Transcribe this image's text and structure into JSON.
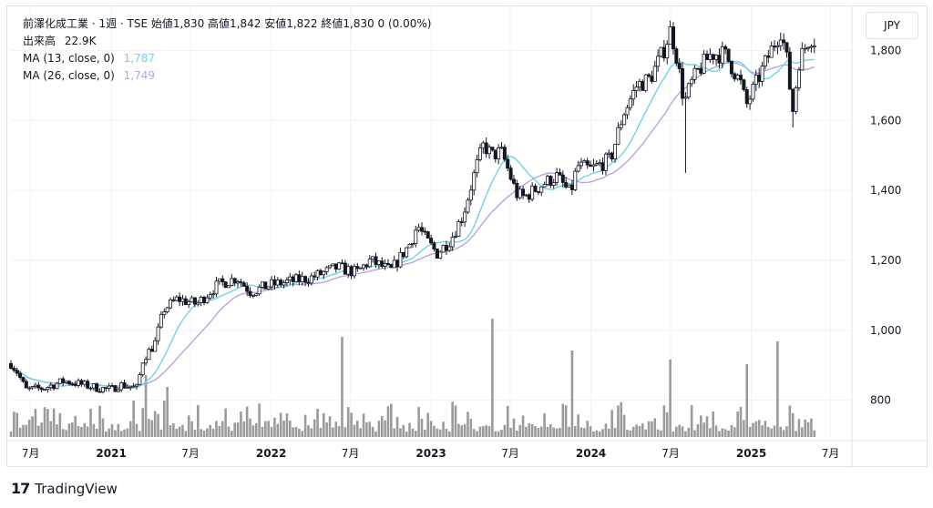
{
  "legend": {
    "main": "前澤化成工業 · 1週 · TSE  始値1,830  高値1,842  安値1,822  終値1,830  0 (0.00%)",
    "volume_label": "出来高",
    "volume_value": "22.9K",
    "ma13_label": "MA (13, close, 0)",
    "ma13_value": "1,787",
    "ma26_label": "MA (26, close, 0)",
    "ma26_value": "1,749"
  },
  "currency_button": "JPY",
  "brand": {
    "logo": "17",
    "name": "TradingView"
  },
  "colors": {
    "ma13": "#6fd4e4",
    "ma26": "#b9a4de",
    "candle": "#131722",
    "volume": "#8a8a8a",
    "grid": "#f0f3fa"
  },
  "chart_data": {
    "type": "candlestick",
    "timeframe": "1週",
    "y_ticks": [
      "1,800",
      "1,600",
      "1,400",
      "1,200",
      "1,000",
      "800"
    ],
    "y_tick_values": [
      1800,
      1600,
      1400,
      1200,
      1000,
      800
    ],
    "ylim": [
      695,
      1895
    ],
    "x_labels": [
      {
        "text": "7月",
        "date": "2020-07-01",
        "bold": false
      },
      {
        "text": "2021",
        "date": "2021-01-01",
        "bold": true
      },
      {
        "text": "7月",
        "date": "2021-07-01",
        "bold": false
      },
      {
        "text": "2022",
        "date": "2022-01-01",
        "bold": true
      },
      {
        "text": "7月",
        "date": "2022-07-01",
        "bold": false
      },
      {
        "text": "2023",
        "date": "2023-01-01",
        "bold": true
      },
      {
        "text": "7月",
        "date": "2023-07-01",
        "bold": false
      },
      {
        "text": "2024",
        "date": "2024-01-01",
        "bold": true
      },
      {
        "text": "7月",
        "date": "2024-07-01",
        "bold": false
      },
      {
        "text": "2025",
        "date": "2025-01-01",
        "bold": true
      },
      {
        "text": "7月",
        "date": "2025-07-01",
        "bold": false
      }
    ],
    "x_range": [
      "2020-05-17",
      "2025-07-31"
    ],
    "price_keypoints": [
      [
        "2020-05-17",
        905
      ],
      [
        "2020-06-01",
        880
      ],
      [
        "2020-06-20",
        830
      ],
      [
        "2020-08-01",
        835
      ],
      [
        "2020-09-15",
        855
      ],
      [
        "2020-10-15",
        848
      ],
      [
        "2020-12-01",
        835
      ],
      [
        "2021-01-01",
        830
      ],
      [
        "2021-01-20",
        845
      ],
      [
        "2021-03-01",
        835
      ],
      [
        "2021-03-15",
        920
      ],
      [
        "2021-04-10",
        960
      ],
      [
        "2021-05-01",
        1060
      ],
      [
        "2021-06-01",
        1090
      ],
      [
        "2021-07-15",
        1075
      ],
      [
        "2021-09-01",
        1130
      ],
      [
        "2021-10-15",
        1150
      ],
      [
        "2021-11-15",
        1110
      ],
      [
        "2022-01-01",
        1130
      ],
      [
        "2022-02-15",
        1140
      ],
      [
        "2022-04-01",
        1150
      ],
      [
        "2022-06-01",
        1180
      ],
      [
        "2022-07-15",
        1165
      ],
      [
        "2022-08-15",
        1200
      ],
      [
        "2022-10-01",
        1170
      ],
      [
        "2022-11-15",
        1250
      ],
      [
        "2022-12-01",
        1300
      ],
      [
        "2022-12-20",
        1260
      ],
      [
        "2023-01-15",
        1220
      ],
      [
        "2023-02-15",
        1260
      ],
      [
        "2023-03-15",
        1330
      ],
      [
        "2023-04-15",
        1470
      ],
      [
        "2023-05-01",
        1530
      ],
      [
        "2023-05-20",
        1500
      ],
      [
        "2023-06-10",
        1510
      ],
      [
        "2023-06-20",
        1480
      ],
      [
        "2023-07-15",
        1390
      ],
      [
        "2023-08-01",
        1380
      ],
      [
        "2023-09-15",
        1420
      ],
      [
        "2023-10-15",
        1440
      ],
      [
        "2023-11-15",
        1390
      ],
      [
        "2023-12-01",
        1470
      ],
      [
        "2024-01-01",
        1460
      ],
      [
        "2024-02-15",
        1490
      ],
      [
        "2024-03-15",
        1620
      ],
      [
        "2024-04-15",
        1700
      ],
      [
        "2024-05-15",
        1720
      ],
      [
        "2024-06-15",
        1800
      ],
      [
        "2024-07-01",
        1860
      ],
      [
        "2024-07-15",
        1780
      ],
      [
        "2024-08-01",
        1650
      ],
      [
        "2024-08-15",
        1700
      ],
      [
        "2024-09-01",
        1740
      ],
      [
        "2024-10-01",
        1790
      ],
      [
        "2024-11-01",
        1790
      ],
      [
        "2024-11-15",
        1760
      ],
      [
        "2024-12-10",
        1700
      ],
      [
        "2024-12-20",
        1640
      ],
      [
        "2025-01-10",
        1700
      ],
      [
        "2025-02-15",
        1800
      ],
      [
        "2025-03-10",
        1860
      ],
      [
        "2025-03-25",
        1760
      ],
      [
        "2025-04-05",
        1620
      ],
      [
        "2025-04-20",
        1770
      ],
      [
        "2025-05-15",
        1840
      ],
      [
        "2025-05-25",
        1830
      ]
    ],
    "volume_spikes": [
      [
        "2022-06-10",
        110
      ],
      [
        "2023-05-20",
        130
      ],
      [
        "2023-11-20",
        95
      ],
      [
        "2024-07-01",
        85
      ],
      [
        "2024-12-20",
        80
      ],
      [
        "2025-03-05",
        105
      ],
      [
        "2021-03-20",
        68
      ],
      [
        "2021-05-10",
        55
      ]
    ],
    "annotations": {
      "low_wick_2024_08": 1450,
      "low_wick_2025_04": 1580
    },
    "series": [
      {
        "name": "MA (13, close, 0)",
        "last": 1787
      },
      {
        "name": "MA (26, close, 0)",
        "last": 1749
      }
    ]
  }
}
